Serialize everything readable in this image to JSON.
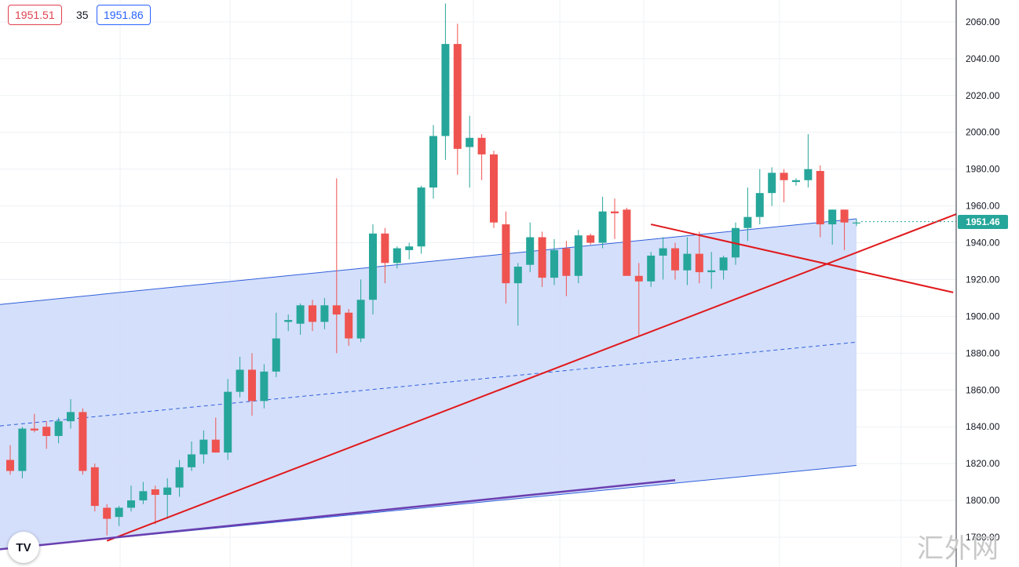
{
  "quote": {
    "bid": "1951.51",
    "spread": "35",
    "ask": "1951.86"
  },
  "last_price_label": "1951.46",
  "watermark": "汇外网",
  "logo_text": "TV",
  "colors": {
    "up": "#26a69a",
    "down": "#ef5350",
    "channel_fill": "#cfdcfb",
    "channel_line": "#2f5fd9",
    "trend": "#e0191c",
    "support": "#6a3fb0"
  },
  "chart_data": {
    "type": "candlestick",
    "y_axis": {
      "min": 1770,
      "max": 2070,
      "ticks": [
        "1780.00",
        "1800.00",
        "1820.00",
        "1840.00",
        "1860.00",
        "1880.00",
        "1900.00",
        "1920.00",
        "1940.00",
        "1960.00",
        "1980.00",
        "2000.00",
        "2020.00",
        "2040.00",
        "2060.00"
      ]
    },
    "grid": true,
    "candles": [
      [
        1822,
        1830,
        1814,
        1816
      ],
      [
        1816,
        1840,
        1812,
        1839
      ],
      [
        1839,
        1847,
        1837,
        1838
      ],
      [
        1840,
        1843,
        1828,
        1835
      ],
      [
        1835,
        1845,
        1831,
        1843
      ],
      [
        1843,
        1855,
        1839,
        1848
      ],
      [
        1848,
        1850,
        1814,
        1816
      ],
      [
        1818,
        1820,
        1794,
        1797
      ],
      [
        1796,
        1798,
        1781,
        1790
      ],
      [
        1791,
        1797,
        1786,
        1796
      ],
      [
        1796,
        1808,
        1794,
        1800
      ],
      [
        1800,
        1810,
        1798,
        1805
      ],
      [
        1806,
        1808,
        1787,
        1803
      ],
      [
        1803,
        1812,
        1790,
        1807
      ],
      [
        1807,
        1822,
        1802,
        1818
      ],
      [
        1818,
        1832,
        1816,
        1825
      ],
      [
        1825,
        1838,
        1820,
        1833
      ],
      [
        1833,
        1845,
        1826,
        1826
      ],
      [
        1826,
        1866,
        1822,
        1859
      ],
      [
        1859,
        1878,
        1856,
        1871
      ],
      [
        1871,
        1880,
        1846,
        1854
      ],
      [
        1854,
        1874,
        1850,
        1870
      ],
      [
        1870,
        1902,
        1867,
        1888
      ],
      [
        1897,
        1901,
        1892,
        1898
      ],
      [
        1896,
        1907,
        1890,
        1906
      ],
      [
        1906,
        1909,
        1892,
        1897
      ],
      [
        1897,
        1910,
        1893,
        1906
      ],
      [
        1906,
        1975,
        1880,
        1901
      ],
      [
        1902,
        1904,
        1884,
        1888
      ],
      [
        1888,
        1920,
        1886,
        1909
      ],
      [
        1909,
        1950,
        1901,
        1945
      ],
      [
        1945,
        1948,
        1918,
        1929
      ],
      [
        1929,
        1938,
        1926,
        1937
      ],
      [
        1936,
        1940,
        1931,
        1938
      ],
      [
        1938,
        1971,
        1934,
        1970
      ],
      [
        1970,
        2004,
        1964,
        1998
      ],
      [
        1998,
        2070,
        1985,
        2048
      ],
      [
        2048,
        2059,
        1977,
        1991
      ],
      [
        1992,
        2009,
        1970,
        1997
      ],
      [
        1997,
        1999,
        1974,
        1988
      ],
      [
        1988,
        1990,
        1948,
        1951
      ],
      [
        1950,
        1957,
        1907,
        1918
      ],
      [
        1918,
        1929,
        1895,
        1927
      ],
      [
        1928,
        1951,
        1924,
        1943
      ],
      [
        1943,
        1946,
        1916,
        1921
      ],
      [
        1921,
        1942,
        1917,
        1936
      ],
      [
        1937,
        1941,
        1911,
        1922
      ],
      [
        1922,
        1947,
        1918,
        1944
      ],
      [
        1944,
        1945,
        1939,
        1940
      ],
      [
        1940,
        1965,
        1937,
        1957
      ],
      [
        1957,
        1964,
        1942,
        1956
      ],
      [
        1958,
        1959,
        1922,
        1922
      ],
      [
        1922,
        1929,
        1889,
        1919
      ],
      [
        1919,
        1935,
        1916,
        1933
      ],
      [
        1933,
        1943,
        1920,
        1937
      ],
      [
        1937,
        1940,
        1920,
        1925
      ],
      [
        1925,
        1943,
        1917,
        1934
      ],
      [
        1934,
        1946,
        1918,
        1924
      ],
      [
        1924,
        1935,
        1915,
        1925
      ],
      [
        1925,
        1933,
        1920,
        1932
      ],
      [
        1932,
        1951,
        1928,
        1948
      ],
      [
        1948,
        1970,
        1941,
        1954
      ],
      [
        1954,
        1980,
        1950,
        1967
      ],
      [
        1967,
        1981,
        1960,
        1978
      ],
      [
        1978,
        1980,
        1962,
        1974
      ],
      [
        1973,
        1975,
        1971,
        1974
      ],
      [
        1974,
        1999,
        1970,
        1980
      ],
      [
        1979,
        1982,
        1943,
        1950
      ],
      [
        1950,
        1958,
        1939,
        1958
      ],
      [
        1958,
        1958,
        1936,
        1951
      ],
      [
        1951,
        1953,
        1949,
        1951
      ]
    ],
    "channel": {
      "upper": [
        [
          0,
          1907
        ],
        [
          70,
          1953
        ]
      ],
      "middle": [
        [
          0,
          1841
        ],
        [
          70,
          1886
        ]
      ],
      "lower": [
        [
          0,
          1774
        ],
        [
          70,
          1819
        ]
      ],
      "shade_to_index": 70
    },
    "trendlines": [
      {
        "kind": "rising-support",
        "from": [
          8,
          1778
        ],
        "to": [
          82,
          1965
        ]
      },
      {
        "kind": "falling-resistance",
        "from": [
          53,
          1950
        ],
        "to": [
          78,
          1913
        ]
      }
    ],
    "base_line": {
      "from": [
        0,
        1774
      ],
      "to": [
        55,
        1811
      ]
    }
  }
}
